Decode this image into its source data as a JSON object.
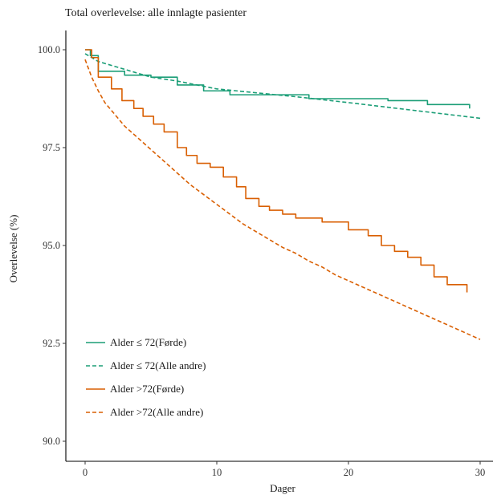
{
  "chart_data": {
    "type": "line",
    "title": "Total overlevelse: alle innlagte pasienter",
    "xlabel": "Dager",
    "ylabel": "Overlevelse (%)",
    "xlim": [
      0,
      30
    ],
    "ylim": [
      90,
      100
    ],
    "x_ticks": [
      0,
      10,
      20,
      30
    ],
    "y_ticks": [
      90.0,
      92.5,
      95.0,
      97.5,
      100.0
    ],
    "x_tick_labels": [
      "0",
      "10",
      "20",
      "30"
    ],
    "y_tick_labels": [
      "90.0",
      "92.5",
      "95.0",
      "97.5",
      "100.0"
    ],
    "grid": false,
    "legend_position": "bottom-left",
    "series": [
      {
        "name": "Alder ≤ 72(Førde)",
        "color": "#1b9e77",
        "dash": "solid",
        "step": true,
        "points": [
          [
            0,
            100
          ],
          [
            0.4,
            99.85
          ],
          [
            1,
            99.45
          ],
          [
            3,
            99.35
          ],
          [
            5,
            99.3
          ],
          [
            7,
            99.1
          ],
          [
            9,
            98.95
          ],
          [
            11,
            98.85
          ],
          [
            17,
            98.75
          ],
          [
            23,
            98.7
          ],
          [
            26,
            98.6
          ],
          [
            29.2,
            98.5
          ]
        ]
      },
      {
        "name": "Alder ≤ 72(Alle andre)",
        "color": "#1b9e77",
        "dash": "dashed",
        "step": false,
        "points": [
          [
            0,
            99.9
          ],
          [
            1,
            99.7
          ],
          [
            3,
            99.5
          ],
          [
            5,
            99.3
          ],
          [
            7,
            99.2
          ],
          [
            10,
            99.0
          ],
          [
            13,
            98.9
          ],
          [
            16,
            98.8
          ],
          [
            20,
            98.65
          ],
          [
            25,
            98.45
          ],
          [
            30,
            98.25
          ]
        ]
      },
      {
        "name": "Alder >72(Førde)",
        "color": "#d95f02",
        "dash": "solid",
        "step": true,
        "points": [
          [
            0,
            100
          ],
          [
            0.5,
            99.8
          ],
          [
            1,
            99.3
          ],
          [
            2,
            99.0
          ],
          [
            2.8,
            98.7
          ],
          [
            3.7,
            98.5
          ],
          [
            4.4,
            98.3
          ],
          [
            5.2,
            98.1
          ],
          [
            6,
            97.9
          ],
          [
            7,
            97.5
          ],
          [
            7.7,
            97.3
          ],
          [
            8.5,
            97.1
          ],
          [
            9.5,
            97.0
          ],
          [
            10.5,
            96.75
          ],
          [
            11.5,
            96.5
          ],
          [
            12.2,
            96.2
          ],
          [
            13.2,
            96.0
          ],
          [
            14,
            95.9
          ],
          [
            15,
            95.8
          ],
          [
            16,
            95.7
          ],
          [
            18,
            95.6
          ],
          [
            20,
            95.4
          ],
          [
            21.5,
            95.25
          ],
          [
            22.5,
            95.0
          ],
          [
            23.5,
            94.85
          ],
          [
            24.5,
            94.7
          ],
          [
            25.5,
            94.5
          ],
          [
            26.5,
            94.2
          ],
          [
            27.5,
            94.0
          ],
          [
            29,
            93.8
          ]
        ]
      },
      {
        "name": "Alder >72(Alle andre)",
        "color": "#d95f02",
        "dash": "dashed",
        "step": false,
        "points": [
          [
            0,
            99.75
          ],
          [
            0.5,
            99.3
          ],
          [
            1,
            98.95
          ],
          [
            1.5,
            98.65
          ],
          [
            2,
            98.45
          ],
          [
            3,
            98.05
          ],
          [
            4,
            97.75
          ],
          [
            5,
            97.45
          ],
          [
            6,
            97.15
          ],
          [
            7,
            96.85
          ],
          [
            8,
            96.55
          ],
          [
            9,
            96.3
          ],
          [
            10,
            96.05
          ],
          [
            11,
            95.8
          ],
          [
            12,
            95.55
          ],
          [
            13,
            95.35
          ],
          [
            14,
            95.15
          ],
          [
            15,
            94.95
          ],
          [
            16,
            94.8
          ],
          [
            17,
            94.6
          ],
          [
            18,
            94.45
          ],
          [
            19,
            94.25
          ],
          [
            20,
            94.1
          ],
          [
            21,
            93.95
          ],
          [
            22,
            93.8
          ],
          [
            23,
            93.65
          ],
          [
            24,
            93.5
          ],
          [
            25,
            93.35
          ],
          [
            26,
            93.2
          ],
          [
            27,
            93.05
          ],
          [
            28,
            92.9
          ],
          [
            29,
            92.75
          ],
          [
            30,
            92.6
          ]
        ]
      }
    ]
  }
}
